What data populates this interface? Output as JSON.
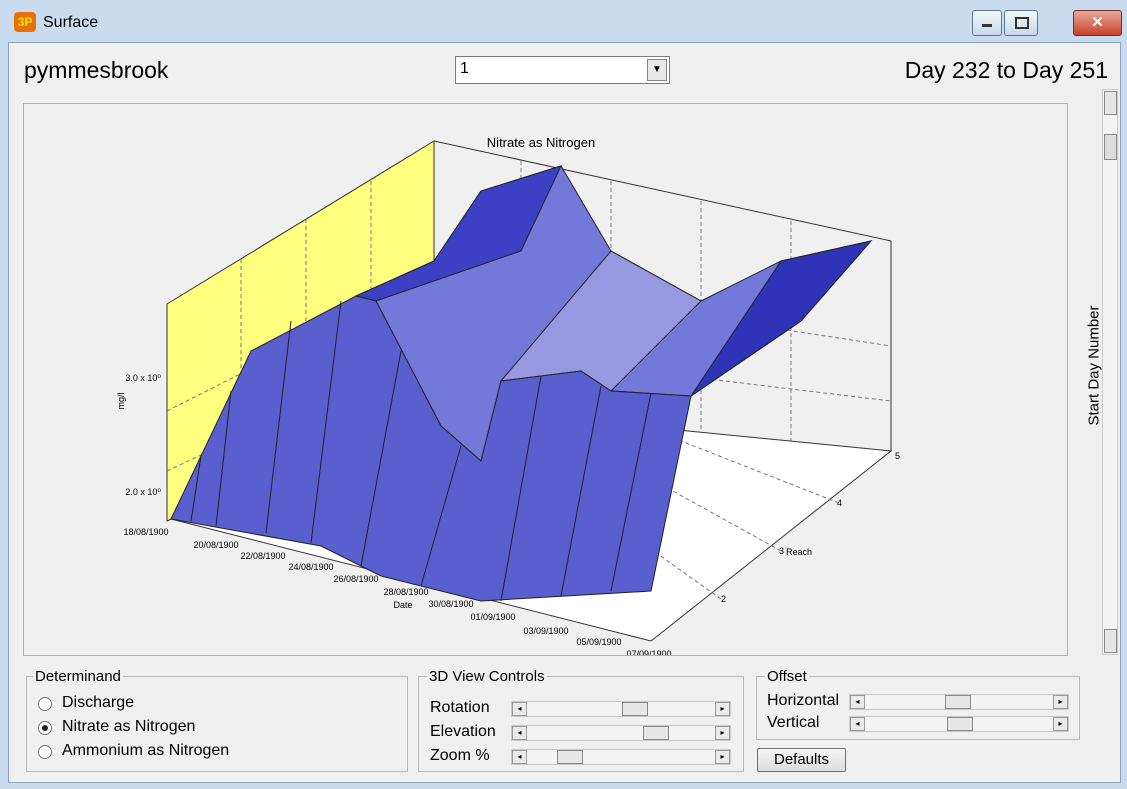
{
  "window": {
    "title": "Surface"
  },
  "header": {
    "site": "pymmesbrook",
    "selector": "1",
    "range": "Day 232 to Day 251"
  },
  "plot": {
    "title": "Nitrate as Nitrogen",
    "y_axis": {
      "label": "mg/l",
      "ticks": [
        "3.0 x 10⁰",
        "2.0 x 10⁰"
      ]
    },
    "x_axis": {
      "label": "Date",
      "ticks": [
        "18/08/1900",
        "20/08/1900",
        "22/08/1900",
        "24/08/1900",
        "26/08/1900",
        "28/08/1900",
        "30/08/1900",
        "01/09/1900",
        "03/09/1900",
        "05/09/1900",
        "07/09/1900"
      ]
    },
    "z_axis": {
      "label": "Reach",
      "ticks": [
        "2",
        "3",
        "4",
        "5"
      ]
    }
  },
  "scrollbar": {
    "label": "Start Day Number"
  },
  "determinand": {
    "title": "Determinand",
    "options": [
      {
        "label": "Discharge",
        "selected": false
      },
      {
        "label": "Nitrate as Nitrogen",
        "selected": true
      },
      {
        "label": "Ammonium as Nitrogen",
        "selected": false
      }
    ]
  },
  "view_controls": {
    "title": "3D View Controls",
    "sliders": [
      "Rotation",
      "Elevation",
      "Zoom %"
    ]
  },
  "offset": {
    "title": "Offset",
    "sliders": [
      "Horizontal",
      "Vertical"
    ]
  },
  "defaults_button": "Defaults"
}
